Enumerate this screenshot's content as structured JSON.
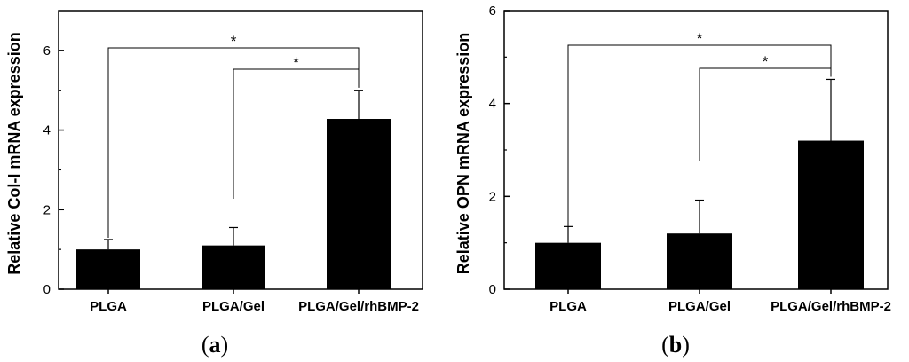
{
  "chart_data": [
    {
      "type": "bar",
      "panel_label": "a",
      "categories": [
        "PLGA",
        "PLGA/Gel",
        "PLGA/Gel/rhBMP-2"
      ],
      "values": [
        1.0,
        1.1,
        4.28
      ],
      "error": [
        0.25,
        0.45,
        0.72
      ],
      "ylabel": "Relative Col-I mRNA expression",
      "ylim": [
        0,
        7
      ],
      "yticks": [
        0,
        2,
        4,
        6
      ],
      "significance": [
        {
          "from": 0,
          "to": 2,
          "label": "*"
        },
        {
          "from": 1,
          "to": 2,
          "label": "*"
        }
      ],
      "bar_color": "#000000"
    },
    {
      "type": "bar",
      "panel_label": "b",
      "categories": [
        "PLGA",
        "PLGA/Gel",
        "PLGA/Gel/rhBMP-2"
      ],
      "values": [
        1.0,
        1.2,
        3.2
      ],
      "error": [
        0.35,
        0.72,
        1.32
      ],
      "ylabel": "Relative OPN mRNA expression",
      "ylim": [
        0,
        6
      ],
      "yticks": [
        0,
        2,
        4,
        6
      ],
      "significance": [
        {
          "from": 0,
          "to": 2,
          "label": "*"
        },
        {
          "from": 1,
          "to": 2,
          "label": "*"
        }
      ],
      "bar_color": "#000000"
    }
  ]
}
